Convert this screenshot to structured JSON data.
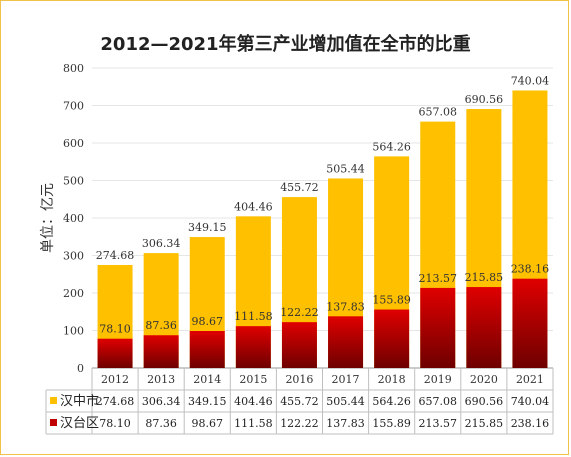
{
  "chart_data": {
    "type": "bar",
    "title": "2012—2021年第三产业增加值在全市的比重",
    "ylabel": "单位：亿元",
    "ylim": [
      0,
      800
    ],
    "yticks": [
      0,
      100,
      200,
      300,
      400,
      500,
      600,
      700,
      800
    ],
    "categories": [
      "2012",
      "2013",
      "2014",
      "2015",
      "2016",
      "2017",
      "2018",
      "2019",
      "2020",
      "2021"
    ],
    "series": [
      {
        "name": "汉中市",
        "color": "#ffc000",
        "values": [
          274.68,
          306.34,
          349.15,
          404.46,
          455.72,
          505.44,
          564.26,
          657.08,
          690.56,
          740.04
        ],
        "labels": [
          "274.68",
          "306.34",
          "349.15",
          "404.46",
          "455.72",
          "505.44",
          "564.26",
          "657.08",
          "690.56",
          "740.04"
        ]
      },
      {
        "name": "汉台区",
        "color": "#c00000",
        "values": [
          78.1,
          87.36,
          98.67,
          111.58,
          122.22,
          137.83,
          155.89,
          213.57,
          215.85,
          238.16
        ],
        "labels": [
          "78.10",
          "87.36",
          "98.67",
          "111.58",
          "122.22",
          "137.83",
          "155.89",
          "213.57",
          "215.85",
          "238.16"
        ]
      }
    ],
    "legend": "data-table-bottom",
    "grid": true,
    "bar_mode": "overlap"
  }
}
